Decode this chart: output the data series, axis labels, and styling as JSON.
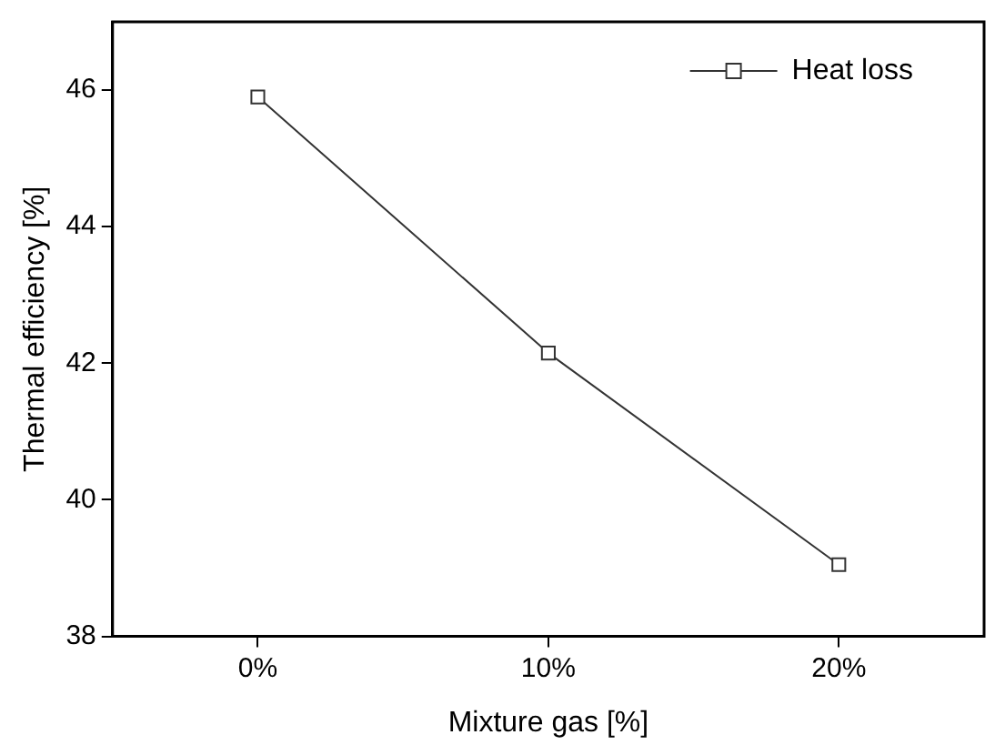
{
  "chart_data": {
    "type": "line",
    "xlabel": "Mixture gas [%]",
    "ylabel": "Thermal efficiency [%]",
    "categories": [
      "0%",
      "10%",
      "20%"
    ],
    "series": [
      {
        "name": "Heat loss",
        "color": "#333333",
        "values": [
          45.9,
          42.15,
          39.05
        ]
      }
    ],
    "ylim": [
      38,
      47
    ],
    "yticks": [
      38,
      40,
      42,
      44,
      46
    ],
    "grid": false,
    "legend": "top right",
    "marker": "square",
    "line_style": "solid"
  }
}
